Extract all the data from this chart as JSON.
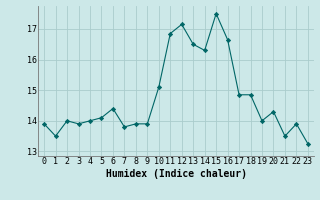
{
  "x": [
    0,
    1,
    2,
    3,
    4,
    5,
    6,
    7,
    8,
    9,
    10,
    11,
    12,
    13,
    14,
    15,
    16,
    17,
    18,
    19,
    20,
    21,
    22,
    23
  ],
  "y": [
    13.9,
    13.5,
    14.0,
    13.9,
    14.0,
    14.1,
    14.4,
    13.8,
    13.9,
    13.9,
    15.1,
    16.85,
    17.15,
    16.5,
    16.3,
    17.5,
    16.65,
    14.85,
    14.85,
    14.0,
    14.3,
    13.5,
    13.9,
    13.25
  ],
  "line_color": "#006666",
  "marker": "D",
  "marker_size": 2.2,
  "bg_color": "#cce8e8",
  "grid_color": "#aacccc",
  "xlabel": "Humidex (Indice chaleur)",
  "xlabel_fontsize": 7,
  "tick_fontsize": 6,
  "ylim": [
    12.85,
    17.75
  ],
  "yticks": [
    13,
    14,
    15,
    16,
    17
  ],
  "xlim": [
    -0.5,
    23.5
  ],
  "fig_bg_color": "#cce8e8"
}
